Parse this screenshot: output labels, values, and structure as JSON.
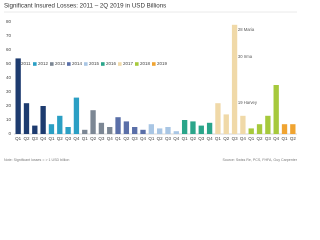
{
  "chart_data": {
    "type": "bar",
    "title": "Significant Insured Losses: 2011 – 2Q 2019 in USD Billions",
    "categories": [
      "Q1",
      "Q2",
      "Q3",
      "Q4",
      "Q1",
      "Q2",
      "Q3",
      "Q4",
      "Q1",
      "Q2",
      "Q3",
      "Q4",
      "Q1",
      "Q2",
      "Q3",
      "Q4",
      "Q1",
      "Q2",
      "Q3",
      "Q4",
      "Q1",
      "Q2",
      "Q3",
      "Q4",
      "Q1",
      "Q2",
      "Q3",
      "Q4",
      "Q1",
      "Q2",
      "Q3",
      "Q4",
      "Q1",
      "Q2"
    ],
    "series": [
      {
        "name": "2011",
        "color": "#1d3b6f",
        "values": [
          54,
          22,
          6,
          20,
          null,
          null,
          null,
          null,
          null,
          null,
          null,
          null,
          null,
          null,
          null,
          null,
          null,
          null,
          null,
          null,
          null,
          null,
          null,
          null,
          null,
          null,
          null,
          null,
          null,
          null,
          null,
          null,
          null,
          null
        ]
      },
      {
        "name": "2012",
        "color": "#2b9fc4",
        "values": [
          null,
          null,
          null,
          null,
          7,
          13,
          5,
          26,
          null,
          null,
          null,
          null,
          null,
          null,
          null,
          null,
          null,
          null,
          null,
          null,
          null,
          null,
          null,
          null,
          null,
          null,
          null,
          null,
          null,
          null,
          null,
          null,
          null,
          null
        ]
      },
      {
        "name": "2013",
        "color": "#7c8794",
        "values": [
          null,
          null,
          null,
          null,
          null,
          null,
          null,
          null,
          3,
          17,
          8,
          5,
          null,
          null,
          null,
          null,
          null,
          null,
          null,
          null,
          null,
          null,
          null,
          null,
          null,
          null,
          null,
          null,
          null,
          null,
          null,
          null,
          null,
          null
        ]
      },
      {
        "name": "2014",
        "color": "#5a6fa8",
        "values": [
          null,
          null,
          null,
          null,
          null,
          null,
          null,
          null,
          null,
          null,
          null,
          null,
          12,
          9,
          5,
          3,
          null,
          null,
          null,
          null,
          null,
          null,
          null,
          null,
          null,
          null,
          null,
          null,
          null,
          null,
          null,
          null,
          null,
          null
        ]
      },
      {
        "name": "2015",
        "color": "#a9c6e4",
        "values": [
          null,
          null,
          null,
          null,
          null,
          null,
          null,
          null,
          null,
          null,
          null,
          null,
          null,
          null,
          null,
          null,
          7,
          4,
          5,
          2,
          null,
          null,
          null,
          null,
          null,
          null,
          null,
          null,
          null,
          null,
          null,
          null,
          null,
          null
        ]
      },
      {
        "name": "2016",
        "color": "#2aa58a",
        "values": [
          null,
          null,
          null,
          null,
          null,
          null,
          null,
          null,
          null,
          null,
          null,
          null,
          null,
          null,
          null,
          null,
          null,
          null,
          null,
          null,
          10,
          9,
          6,
          8,
          null,
          null,
          null,
          null,
          null,
          null,
          null,
          null,
          null,
          null
        ]
      },
      {
        "name": "2017",
        "color": "#f0d9a8",
        "values": [
          null,
          null,
          null,
          null,
          null,
          null,
          null,
          null,
          null,
          null,
          null,
          null,
          null,
          null,
          null,
          null,
          null,
          null,
          null,
          null,
          null,
          null,
          null,
          null,
          22,
          14,
          78,
          13,
          null,
          null,
          null,
          null,
          null,
          null
        ]
      },
      {
        "name": "2018",
        "color": "#a6c93c",
        "values": [
          null,
          null,
          null,
          null,
          null,
          null,
          null,
          null,
          null,
          null,
          null,
          null,
          null,
          null,
          null,
          null,
          null,
          null,
          null,
          null,
          null,
          null,
          null,
          null,
          null,
          null,
          null,
          null,
          4,
          7,
          13,
          35,
          null,
          null
        ]
      },
      {
        "name": "2019",
        "color": "#f0a431",
        "values": [
          null,
          null,
          null,
          null,
          null,
          null,
          null,
          null,
          null,
          null,
          null,
          null,
          null,
          null,
          null,
          null,
          null,
          null,
          null,
          null,
          null,
          null,
          null,
          null,
          null,
          null,
          null,
          null,
          null,
          null,
          null,
          null,
          7,
          7
        ]
      }
    ],
    "annotations": [
      "28 Maria",
      "30 Irma",
      "19 Harvey"
    ],
    "ylim": [
      0,
      80
    ],
    "yticks": [
      0,
      10,
      20,
      30,
      40,
      50,
      60,
      70,
      80
    ],
    "grid": false,
    "note": "Note: Significant losses = > 1 USD billion",
    "source": "Source: Swiss Re, PCS, FHFA, Guy Carpenter"
  }
}
